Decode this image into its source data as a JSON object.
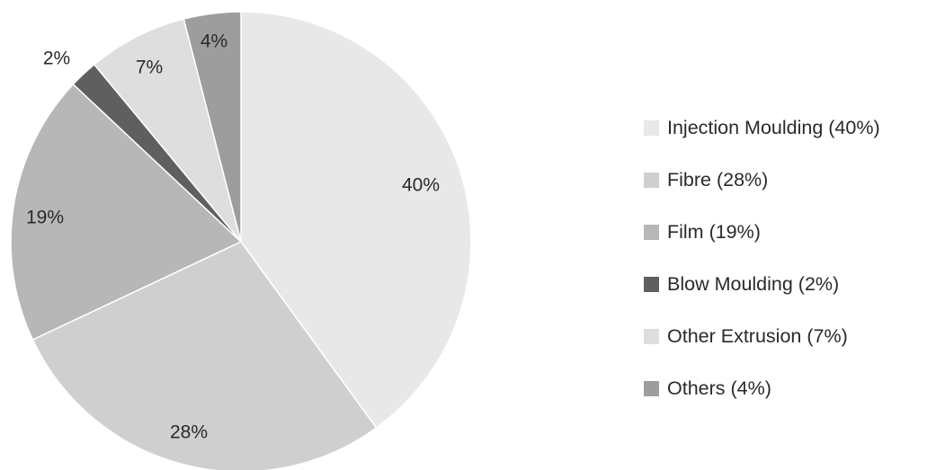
{
  "chart_data": {
    "type": "pie",
    "slices": [
      {
        "label": "Injection Moulding (40%)",
        "value": 40,
        "value_label": "40%",
        "color": "#e8e8e8"
      },
      {
        "label": "Fibre (28%)",
        "value": 28,
        "value_label": "28%",
        "color": "#cfcfcf"
      },
      {
        "label": "Film (19%)",
        "value": 19,
        "value_label": "19%",
        "color": "#b7b7b7"
      },
      {
        "label": "Blow Moulding (2%)",
        "value": 2,
        "value_label": "2%",
        "color": "#5f5f5f"
      },
      {
        "label": "Other Extrusion (7%)",
        "value": 7,
        "value_label": "7%",
        "color": "#dedede"
      },
      {
        "label": "Others (4%)",
        "value": 4,
        "value_label": "4%",
        "color": "#9d9d9d"
      }
    ],
    "legend_position": "right",
    "start_angle": "12 o'clock",
    "direction": "clockwise"
  }
}
